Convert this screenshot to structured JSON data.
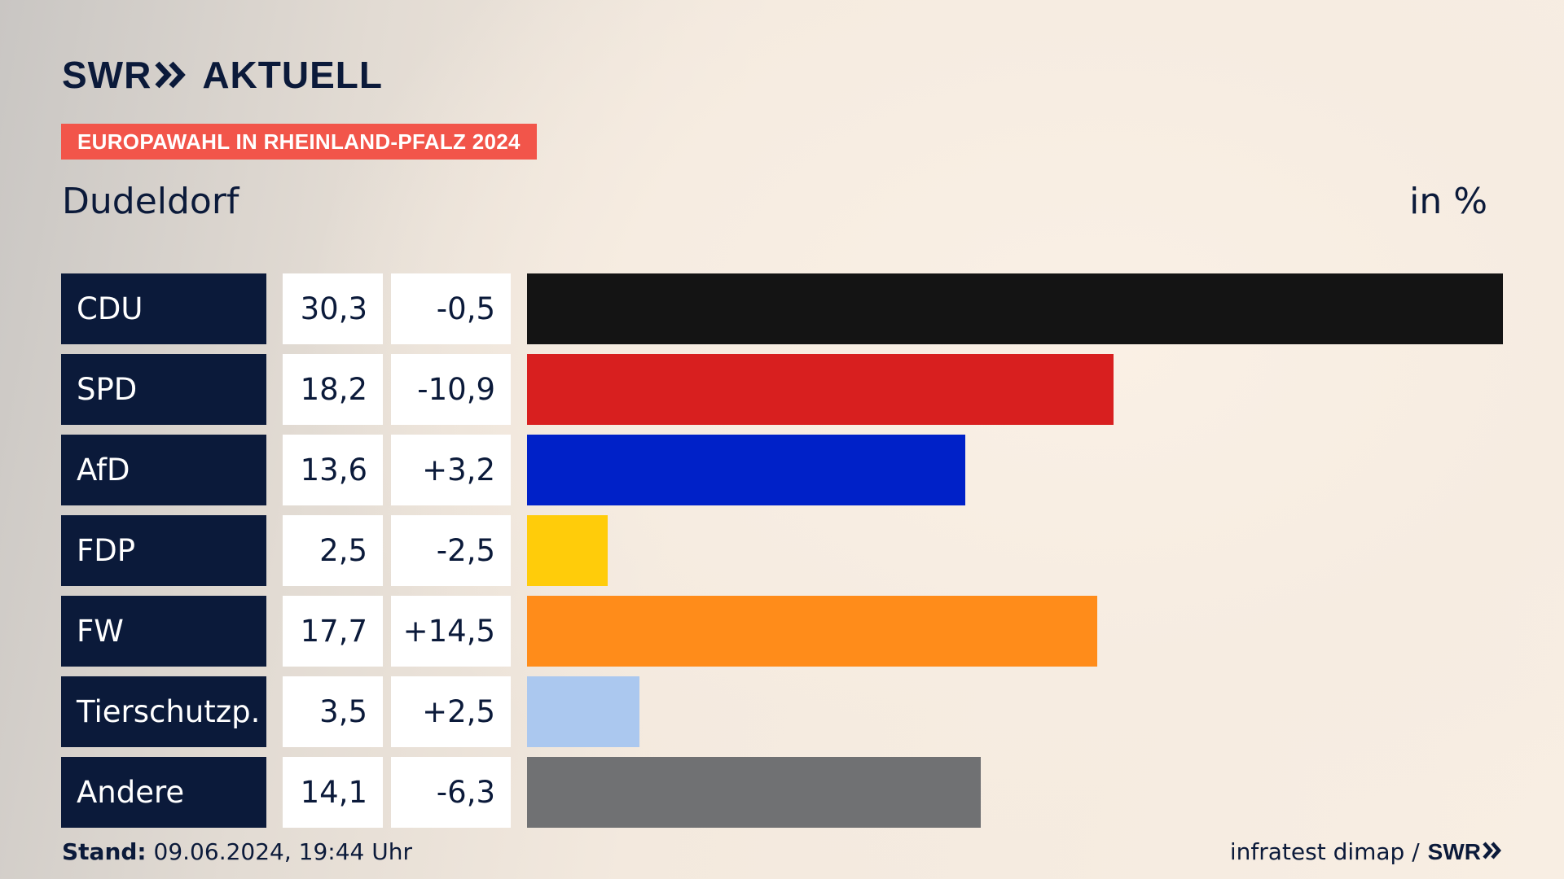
{
  "branding": {
    "logo_swr": "SWR",
    "logo_aktuell": "AKTUELL",
    "logo_icon": "double-chevron-icon"
  },
  "kicker": "EUROPAWAHL IN RHEINLAND-PFALZ 2024",
  "place": "Dudeldorf",
  "unit": "in %",
  "footer": {
    "stand_label": "Stand:",
    "stand_value": "09.06.2024, 19:44 Uhr",
    "source": "infratest dimap /",
    "source_logo": "SWR"
  },
  "colors": {
    "navy": "#0b1a3a",
    "kicker_red": "#f2554a"
  },
  "chart_data": {
    "type": "bar",
    "orientation": "horizontal",
    "categories": [
      "CDU",
      "SPD",
      "AfD",
      "FDP",
      "FW",
      "Tierschutzp.",
      "Andere"
    ],
    "values": [
      30.3,
      18.2,
      13.6,
      2.5,
      17.7,
      3.5,
      14.1
    ],
    "value_labels": [
      "30,3",
      "18,2",
      "13,6",
      "2,5",
      "17,7",
      "3,5",
      "14,1"
    ],
    "changes": [
      -0.5,
      -10.9,
      3.2,
      -2.5,
      14.5,
      2.5,
      -6.3
    ],
    "change_labels": [
      "-0,5",
      "-10,9",
      "+3,2",
      "-2,5",
      "+14,5",
      "+2,5",
      "-6,3"
    ],
    "bar_colors": [
      "#141414",
      "#d81f1f",
      "#0021c8",
      "#ffcc0a",
      "#ff8c1a",
      "#abc8ef",
      "#707173"
    ],
    "xlim": [
      0,
      30.3
    ],
    "grid": false
  }
}
